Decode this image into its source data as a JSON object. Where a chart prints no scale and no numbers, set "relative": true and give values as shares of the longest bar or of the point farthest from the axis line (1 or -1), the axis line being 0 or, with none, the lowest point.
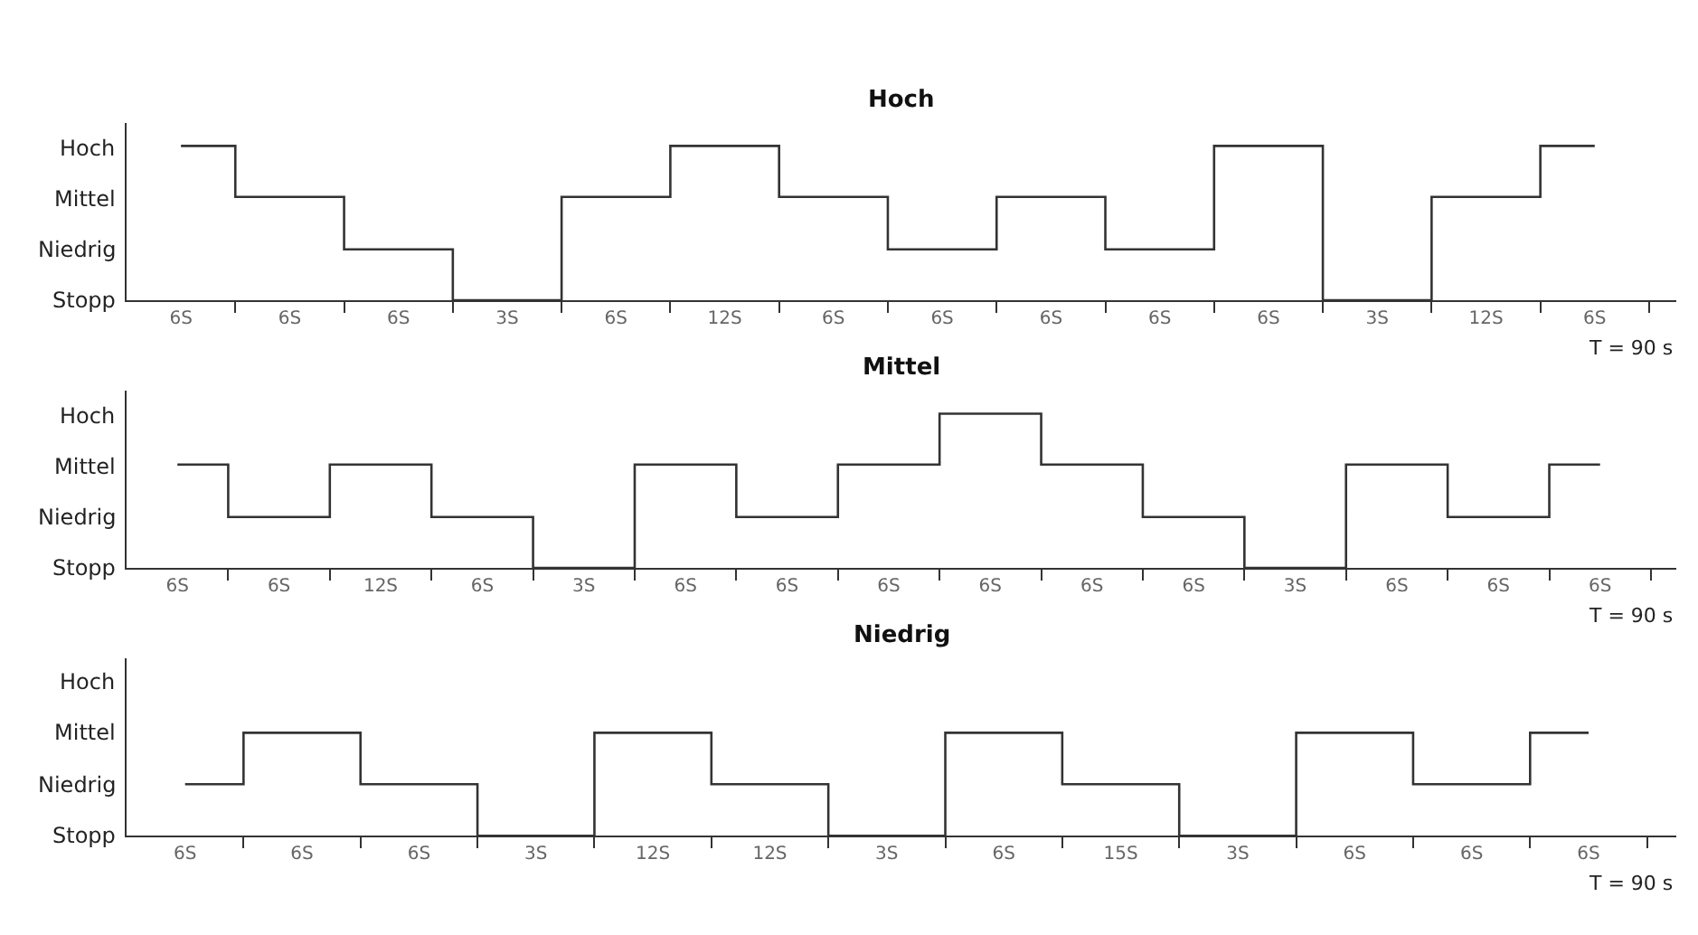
{
  "chart_data": [
    {
      "type": "step",
      "title": "Hoch",
      "color": "#333333",
      "marker": "none",
      "relative": true,
      "categories": [
        "6S",
        "6S",
        "6S",
        "3S",
        "6S",
        "12S",
        "6S",
        "6S",
        "6S",
        "6S",
        "6S",
        "3S",
        "12S",
        "6S"
      ],
      "values": [
        1,
        0.67,
        0.33,
        0,
        0.67,
        1,
        0.67,
        0.33,
        0.67,
        0.33,
        1,
        0,
        0.67,
        1
      ],
      "annotations": [
        "Stopp",
        "Niedrig",
        "Mittel",
        "Hoch",
        "T = 90 s"
      ]
    },
    {
      "type": "step",
      "title": "Mittel",
      "color": "#333333",
      "marker": "none",
      "relative": true,
      "categories": [
        "6S",
        "6S",
        "12S",
        "6S",
        "3S",
        "6S",
        "6S",
        "6S",
        "6S",
        "6S",
        "6S",
        "3S",
        "6S",
        "6S",
        "6S"
      ],
      "values": [
        0.67,
        0.33,
        0.67,
        0.33,
        0,
        0.67,
        0.33,
        0.67,
        1,
        0.67,
        0.33,
        0,
        0.67,
        0.33,
        0.67
      ],
      "annotations": [
        "Stopp",
        "Niedrig",
        "Mittel",
        "Hoch",
        "T = 90 s"
      ]
    },
    {
      "type": "step",
      "title": "Niedrig",
      "color": "#333333",
      "marker": "none",
      "relative": true,
      "categories": [
        "6S",
        "6S",
        "6S",
        "3S",
        "12S",
        "12S",
        "3S",
        "6S",
        "15S",
        "3S",
        "6S",
        "6S",
        "6S"
      ],
      "values": [
        0.5,
        1,
        0.5,
        0,
        1,
        0.5,
        0,
        1,
        0.5,
        0,
        1,
        0.5,
        1
      ],
      "annotations": [
        "Stopp",
        "Niedrig",
        "Mittel",
        "Hoch",
        "T = 90 s"
      ]
    }
  ]
}
